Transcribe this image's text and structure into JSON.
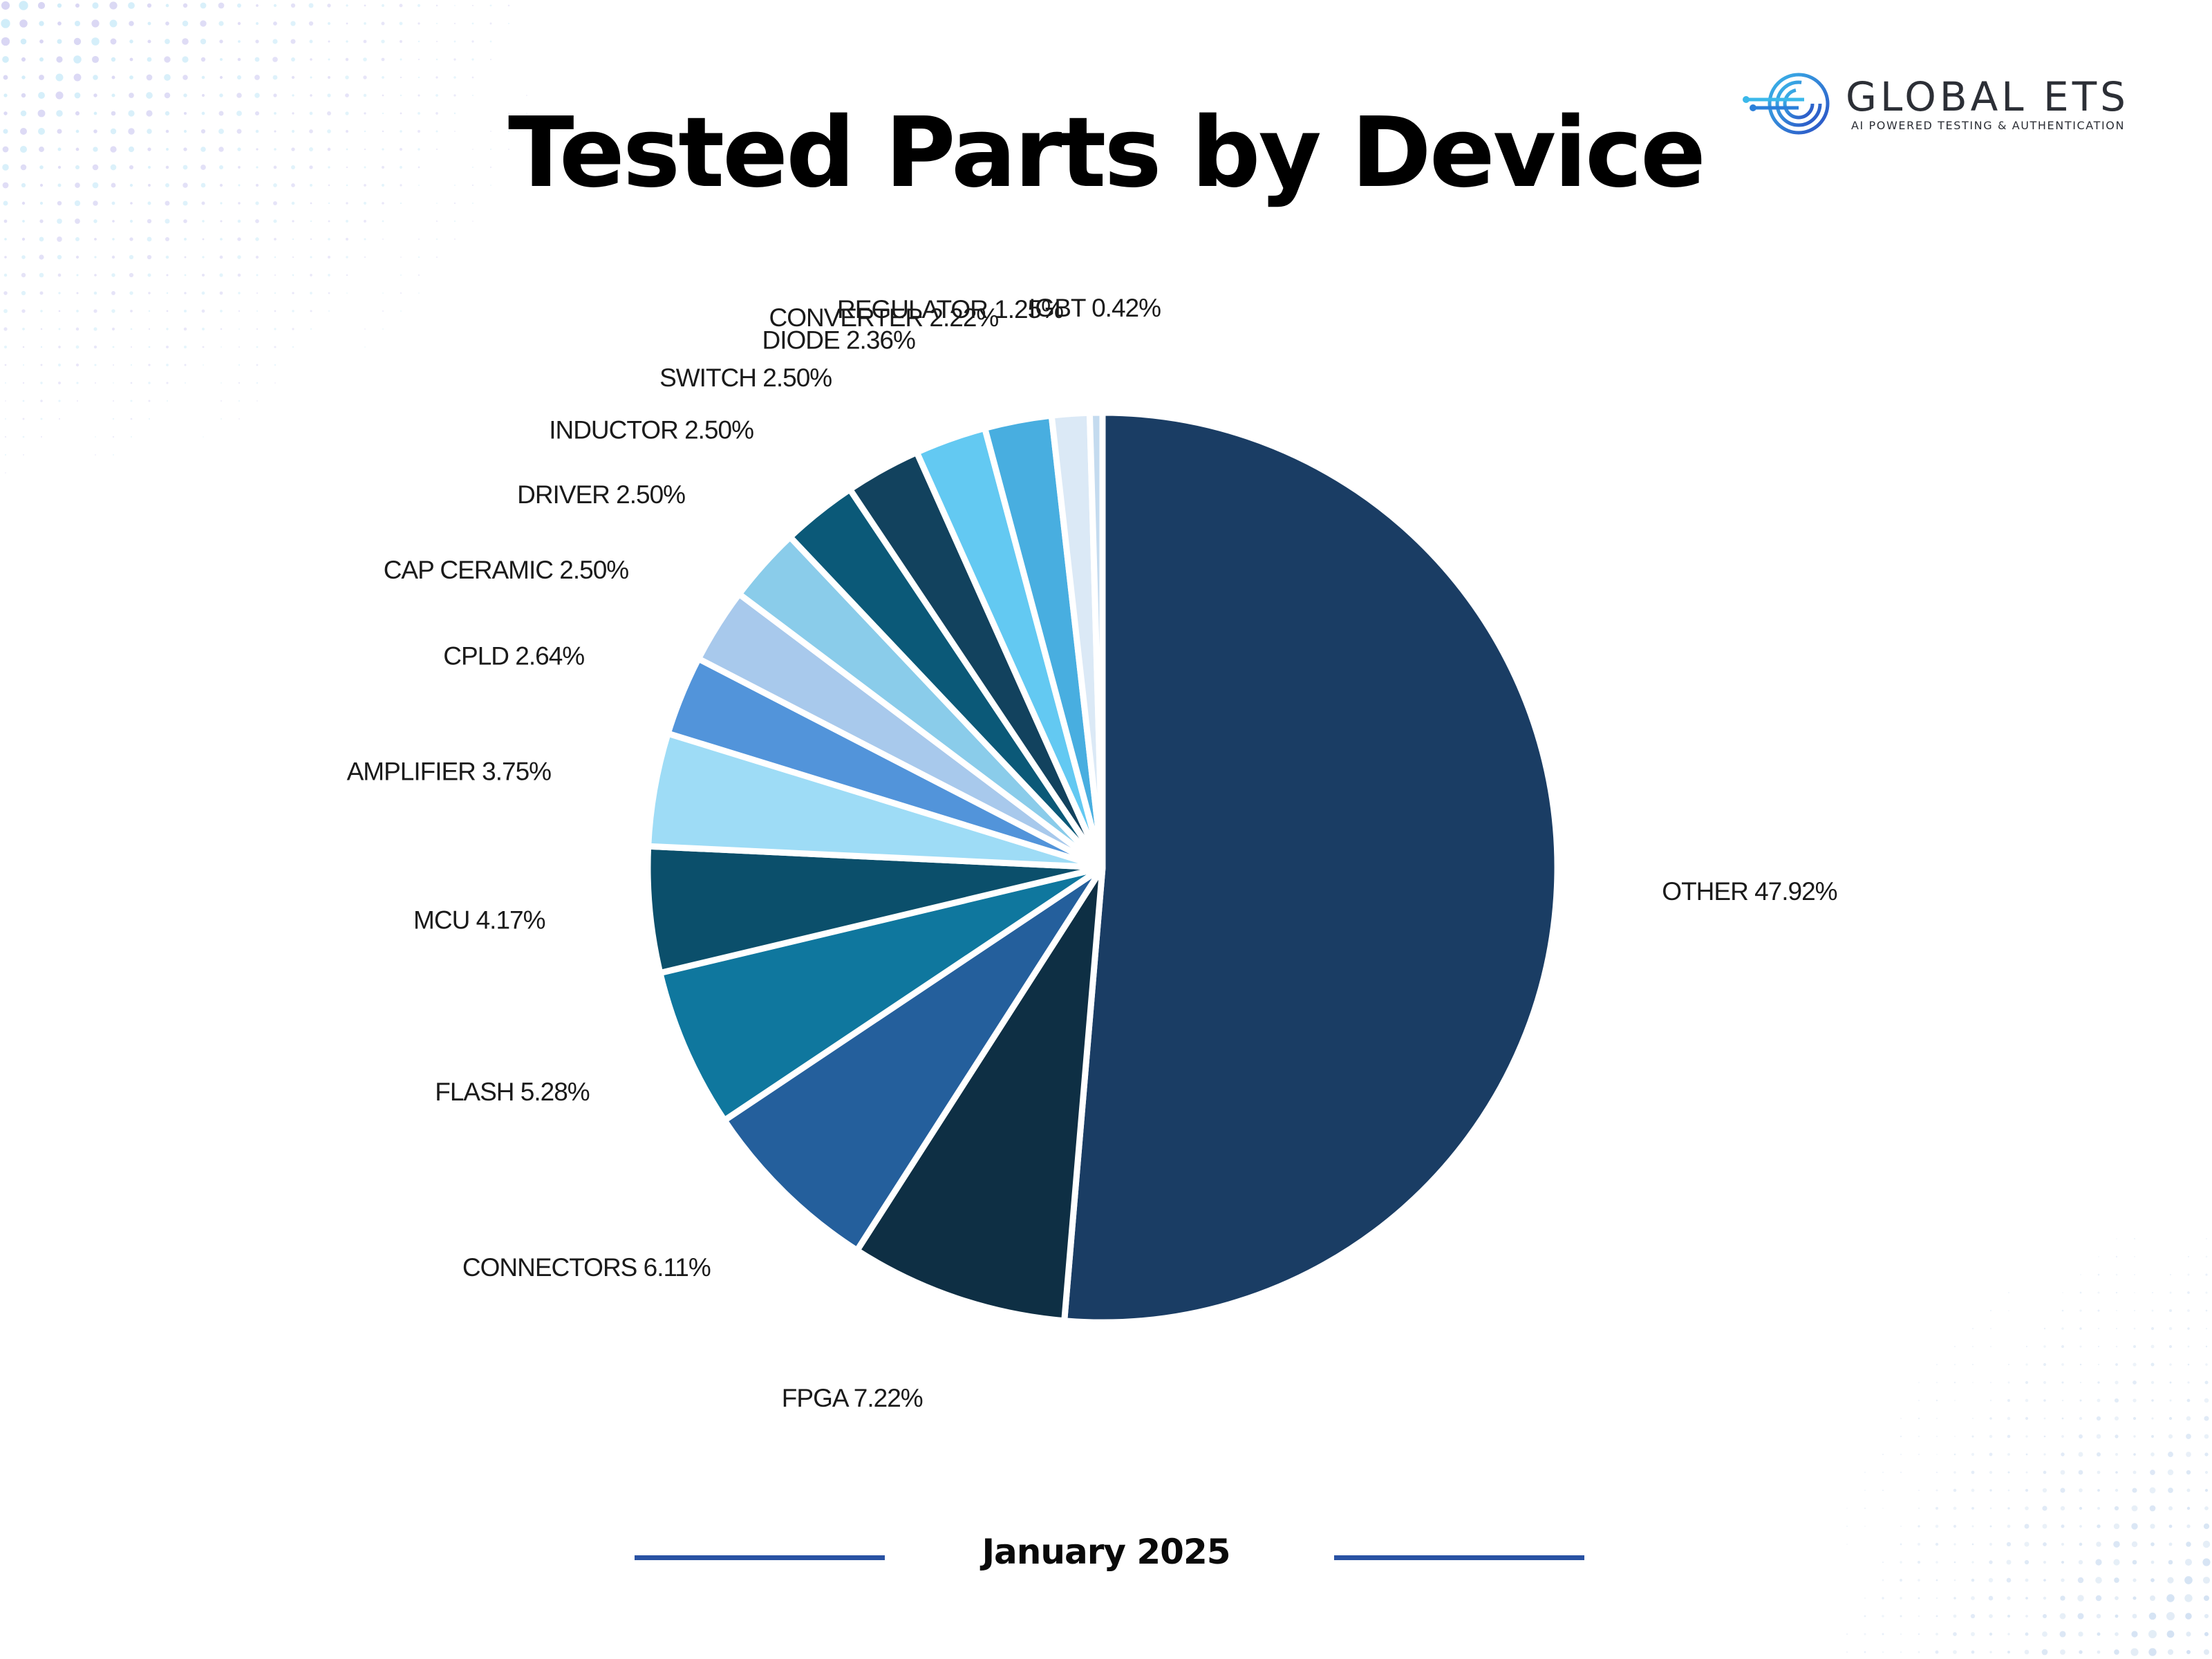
{
  "page": {
    "title": "Tested Parts by Device",
    "period": "January 2025"
  },
  "brand": {
    "name": "GLOBAL ETS",
    "tagline": "AI POWERED TESTING & AUTHENTICATION",
    "accent_color": "#2b7fd9",
    "cyan_color": "#3bb8ea",
    "text_color": "#2c2f36",
    "logo_icon": "circuit-g-icon"
  },
  "colors": {
    "footer_line": "#2952a3",
    "slice_border": "#ffffff"
  },
  "chart_data": {
    "type": "pie",
    "title": "Tested Parts by Device",
    "start": "12 o'clock",
    "direction": "clockwise",
    "legend": "none (labels beside slices)",
    "slices": [
      {
        "label": "OTHER 47.92%",
        "name": "OTHER",
        "value": 47.92,
        "color": "#1a3d64"
      },
      {
        "label": "FPGA 7.22%",
        "name": "FPGA",
        "value": 7.22,
        "color": "#0e2f44"
      },
      {
        "label": "CONNECTORS 6.11%",
        "name": "CONNECTORS",
        "value": 6.11,
        "color": "#245f9c"
      },
      {
        "label": "FLASH 5.28%",
        "name": "FLASH",
        "value": 5.28,
        "color": "#0f779e"
      },
      {
        "label": "MCU 4.17%",
        "name": "MCU",
        "value": 4.17,
        "color": "#0b4f6b"
      },
      {
        "label": "AMPLIFIER 3.75%",
        "name": "AMPLIFIER",
        "value": 3.75,
        "color": "#9edcf6"
      },
      {
        "label": "CPLD 2.64%",
        "name": "CPLD",
        "value": 2.64,
        "color": "#5294da"
      },
      {
        "label": "CAP CERAMIC 2.50%",
        "name": "CAP CERAMIC",
        "value": 2.5,
        "color": "#a8c9ec"
      },
      {
        "label": "DRIVER 2.50%",
        "name": "DRIVER",
        "value": 2.5,
        "color": "#8accea"
      },
      {
        "label": "INDUCTOR  2.50%",
        "name": "INDUCTOR",
        "value": 2.5,
        "color": "#0b5978"
      },
      {
        "label": "SWITCH 2.50%",
        "name": "SWITCH",
        "value": 2.5,
        "color": "#12425e"
      },
      {
        "label": "DIODE 2.36%",
        "name": "DIODE",
        "value": 2.36,
        "color": "#63c9f2"
      },
      {
        "label": "CONVERTER 2.22%",
        "name": "CONVERTER",
        "value": 2.22,
        "color": "#48aee0"
      },
      {
        "label": "REGULATOR 1.25%",
        "name": "REGULATOR",
        "value": 1.25,
        "color": "#dbe9f6"
      },
      {
        "label": "IGBT 0.42%",
        "name": "IGBT",
        "value": 0.42,
        "color": "#c4dbef"
      }
    ]
  }
}
